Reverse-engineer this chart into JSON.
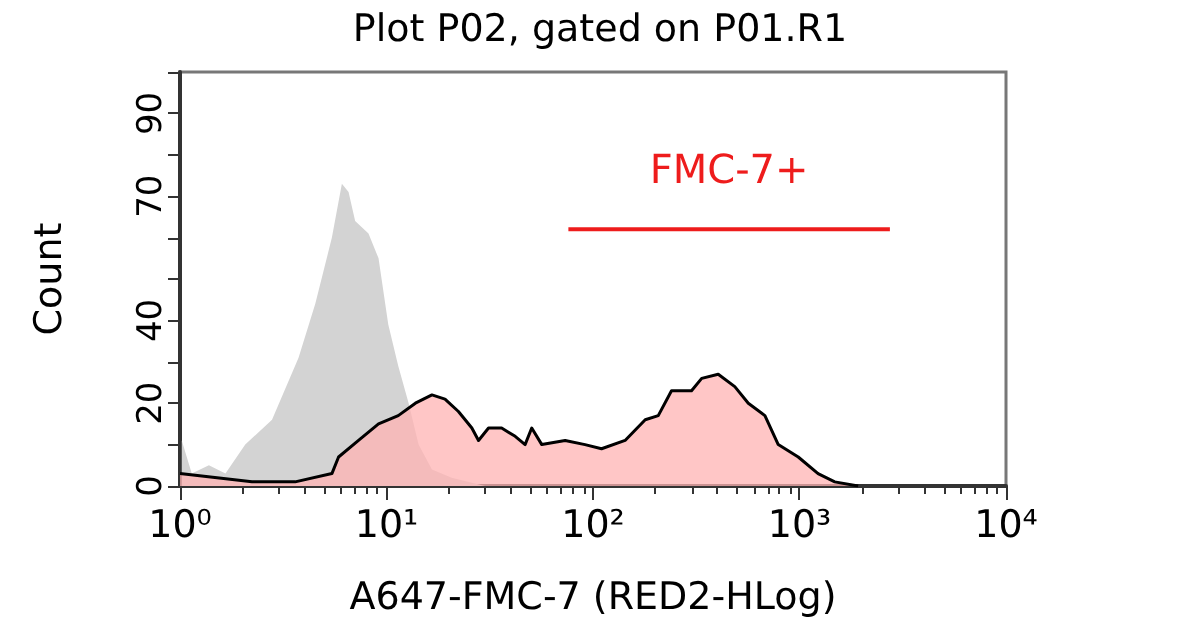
{
  "chart_data": {
    "type": "area",
    "title": "Plot P02, gated on P01.R1",
    "xlabel": "A647-FMC-7 (RED2-HLog)",
    "ylabel": "Count",
    "log": "x",
    "xlim": [
      1,
      10000
    ],
    "ylim": [
      0,
      100
    ],
    "xticks": [
      {
        "value": 1,
        "label": "10⁰"
      },
      {
        "value": 10,
        "label": "10¹"
      },
      {
        "value": 100,
        "label": "10²"
      },
      {
        "value": 1000,
        "label": "10³"
      },
      {
        "value": 10000,
        "label": "10⁴"
      }
    ],
    "yticks": [
      0,
      {
        "value": 10,
        "label": null
      },
      20,
      {
        "value": 30,
        "label": null
      },
      40,
      {
        "value": 50,
        "label": null
      },
      {
        "value": 60,
        "label": null
      },
      70,
      {
        "value": 80,
        "label": null
      },
      90,
      {
        "value": 100,
        "label": null
      }
    ],
    "series": [
      {
        "color": "#d3d3d3",
        "x": [
          1.02,
          1.14,
          1.38,
          1.66,
          2.07,
          2.79,
          3.75,
          4.52,
          5.44,
          6.08,
          6.55,
          7.05,
          8.18,
          9.15,
          10.2,
          11.4,
          12.8,
          14.3,
          16.6,
          20.7,
          30
        ],
        "values": [
          11,
          3,
          5,
          3,
          10,
          16,
          31,
          44,
          60,
          73,
          71,
          64,
          61,
          55,
          39,
          29,
          20,
          10,
          4,
          2,
          0
        ]
      },
      {
        "color": "#ffb3b3",
        "line_style": "solid",
        "x": [
          1,
          2.23,
          3.61,
          5.44,
          5.86,
          7.32,
          9.15,
          11.4,
          13.8,
          16.6,
          19.2,
          22.3,
          25.9,
          27.9,
          31.2,
          36.1,
          42,
          46.9,
          50.5,
          56.5,
          73.3,
          91.5,
          110,
          143,
          179,
          207,
          240,
          300,
          336,
          404,
          486,
          565,
          680,
          789,
          986,
          1230,
          1482,
          1923
        ],
        "values": [
          3,
          1,
          1,
          3,
          7,
          11,
          15,
          17,
          20,
          22,
          21,
          18,
          14,
          11,
          14,
          14,
          12,
          10,
          14,
          10,
          11,
          10,
          9,
          11,
          16,
          17,
          23,
          23,
          26,
          27,
          24,
          20,
          17,
          10,
          7,
          3,
          1,
          0
        ]
      },
      {
        "type": "line",
        "name": "FMC-7+",
        "color": "#ee1c1c",
        "x": [
          76,
          2740
        ],
        "values": [
          62,
          62
        ]
      }
    ],
    "grid": false
  }
}
